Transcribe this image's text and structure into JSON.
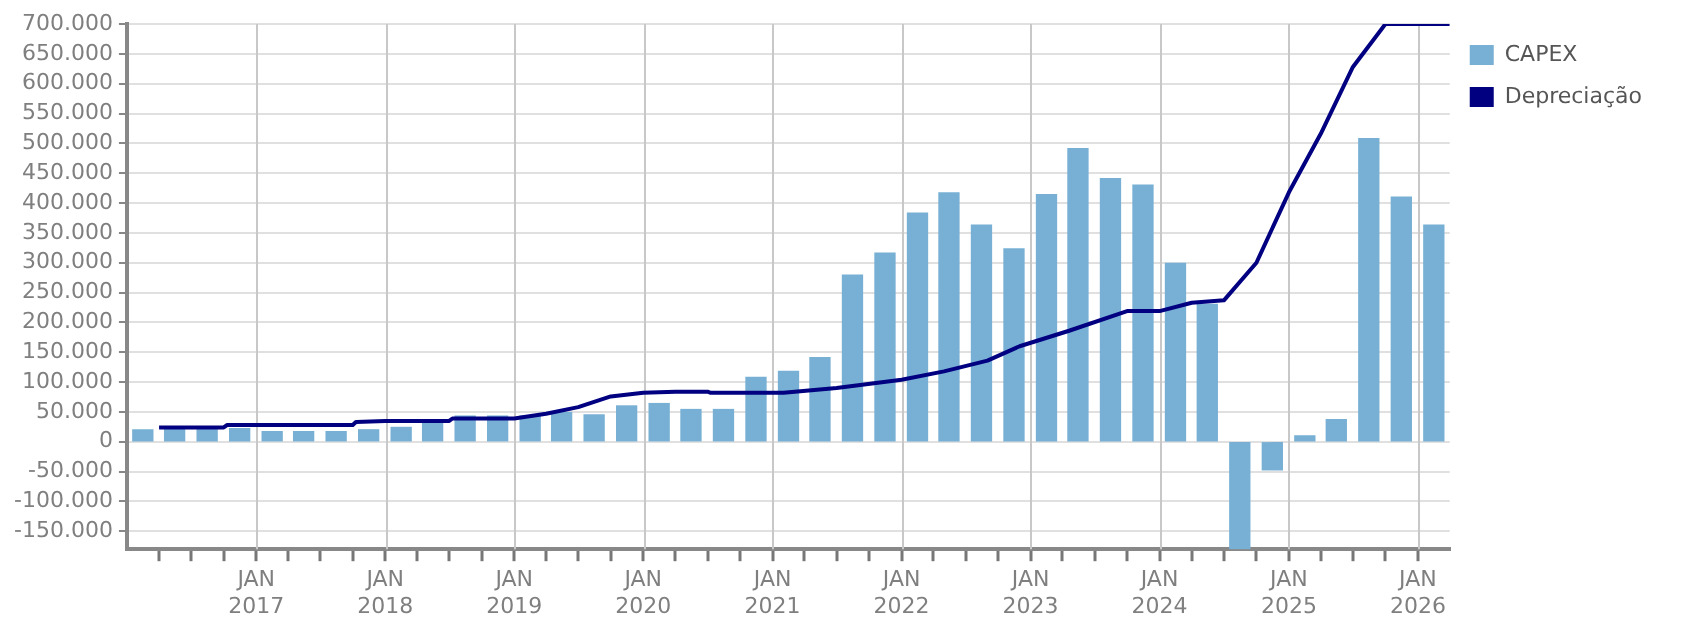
{
  "chart_data": {
    "type": "bar",
    "legend": "top right",
    "grid": true,
    "x": [
      "2016-02-15",
      "2016-05-15",
      "2016-08-15",
      "2016-11-15",
      "2017-02-15",
      "2017-05-15",
      "2017-08-15",
      "2017-11-15",
      "2018-02-15",
      "2018-05-15",
      "2018-08-15",
      "2018-11-15",
      "2019-02-15",
      "2019-05-15",
      "2019-08-15",
      "2019-11-15",
      "2020-02-15",
      "2020-05-15",
      "2020-08-15",
      "2020-11-15",
      "2021-02-15",
      "2021-05-15",
      "2021-08-15",
      "2021-11-15",
      "2022-02-15",
      "2022-05-15",
      "2022-08-15",
      "2022-11-15",
      "2023-02-15",
      "2023-05-15",
      "2023-08-15",
      "2023-11-15",
      "2024-02-15",
      "2024-05-15",
      "2024-08-15",
      "2024-11-15",
      "2025-02-15",
      "2025-05-15",
      "2025-08-15",
      "2025-11-15",
      "2026-02-15"
    ],
    "xlim": [
      "2016-01",
      "2026-04"
    ],
    "xticks": [
      {
        "value": "2016-04",
        "label": null
      },
      {
        "value": "2016-07",
        "label": null
      },
      {
        "value": "2016-10",
        "label": null
      },
      {
        "value": "2017-01",
        "label": "JAN\n2017"
      },
      {
        "value": "2017-04",
        "label": null
      },
      {
        "value": "2017-07",
        "label": null
      },
      {
        "value": "2017-10",
        "label": null
      },
      {
        "value": "2018-01",
        "label": "JAN\n2018"
      },
      {
        "value": "2018-04",
        "label": null
      },
      {
        "value": "2018-07",
        "label": null
      },
      {
        "value": "2018-10",
        "label": null
      },
      {
        "value": "2019-01",
        "label": "JAN\n2019"
      },
      {
        "value": "2019-04",
        "label": null
      },
      {
        "value": "2019-07",
        "label": null
      },
      {
        "value": "2019-10",
        "label": null
      },
      {
        "value": "2020-01",
        "label": "JAN\n2020"
      },
      {
        "value": "2020-04",
        "label": null
      },
      {
        "value": "2020-07",
        "label": null
      },
      {
        "value": "2020-10",
        "label": null
      },
      {
        "value": "2021-01",
        "label": "JAN\n2021"
      },
      {
        "value": "2021-04",
        "label": null
      },
      {
        "value": "2021-07",
        "label": null
      },
      {
        "value": "2021-10",
        "label": null
      },
      {
        "value": "2022-01",
        "label": "JAN\n2022"
      },
      {
        "value": "2022-04",
        "label": null
      },
      {
        "value": "2022-07",
        "label": null
      },
      {
        "value": "2022-10",
        "label": null
      },
      {
        "value": "2023-01",
        "label": "JAN\n2023"
      },
      {
        "value": "2023-04",
        "label": null
      },
      {
        "value": "2023-07",
        "label": null
      },
      {
        "value": "2023-10",
        "label": null
      },
      {
        "value": "2024-01",
        "label": "JAN\n2024"
      },
      {
        "value": "2024-04",
        "label": null
      },
      {
        "value": "2024-07",
        "label": null
      },
      {
        "value": "2024-10",
        "label": null
      },
      {
        "value": "2025-01",
        "label": "JAN\n2025"
      },
      {
        "value": "2025-04",
        "label": null
      },
      {
        "value": "2025-07",
        "label": null
      },
      {
        "value": "2025-10",
        "label": null
      },
      {
        "value": "2026-01",
        "label": "JAN\n2026"
      }
    ],
    "ylim": [
      -180000,
      700000
    ],
    "yticks": [
      {
        "value": -150000,
        "label": "-150.000"
      },
      {
        "value": -100000,
        "label": "-100.000"
      },
      {
        "value": -50000,
        "label": "-50.000"
      },
      {
        "value": 0,
        "label": "0"
      },
      {
        "value": 50000,
        "label": "50.000"
      },
      {
        "value": 100000,
        "label": "100.000"
      },
      {
        "value": 150000,
        "label": "150.000"
      },
      {
        "value": 200000,
        "label": "200.000"
      },
      {
        "value": 250000,
        "label": "250.000"
      },
      {
        "value": 300000,
        "label": "300.000"
      },
      {
        "value": 350000,
        "label": "350.000"
      },
      {
        "value": 400000,
        "label": "400.000"
      },
      {
        "value": 450000,
        "label": "450.000"
      },
      {
        "value": 500000,
        "label": "500.000"
      },
      {
        "value": 550000,
        "label": "550.000"
      },
      {
        "value": 600000,
        "label": "600.000"
      },
      {
        "value": 650000,
        "label": "650.000"
      },
      {
        "value": 700000,
        "label": "700.000"
      }
    ],
    "series": [
      {
        "name": "CAPEX",
        "color": "#77b0d4",
        "values": [
          20000,
          25000,
          25000,
          22000,
          17000,
          17000,
          17000,
          20000,
          24000,
          32000,
          43000,
          43000,
          43000,
          49000,
          45000,
          60000,
          64000,
          54000,
          54000,
          108000,
          118000,
          141000,
          279000,
          316000,
          383000,
          417000,
          363000,
          323000,
          414000,
          491000,
          441000,
          430000,
          299000,
          230000,
          -180000,
          -47000,
          10000,
          37000,
          508000,
          410000,
          363000
        ]
      },
      {
        "name": "Depreciação",
        "type": "line",
        "color": "#000080",
        "marker": "none",
        "x": [
          "2016-04",
          "2016-10",
          "2016-10-10",
          "2017-10",
          "2017-10-10",
          "2018-01",
          "2018-07",
          "2018-07-10",
          "2019-01",
          "2019-04",
          "2019-07",
          "2019-10",
          "2020-01",
          "2020-04",
          "2020-07",
          "2020-07-10",
          "2021-02",
          "2021-07",
          "2022-01",
          "2022-05",
          "2022-09",
          "2022-12",
          "2023-04-20",
          "2023-10",
          "2024-01",
          "2024-04",
          "2024-07",
          "2024-10",
          "2025-01",
          "2025-04",
          "2025-07",
          "2025-10",
          "2026-04"
        ],
        "values": [
          24000,
          24000,
          28000,
          28000,
          33000,
          35000,
          35000,
          39000,
          39000,
          47000,
          58000,
          76000,
          82000,
          84000,
          84000,
          82000,
          82000,
          90000,
          104000,
          118000,
          136000,
          160000,
          186000,
          219000,
          219000,
          233000,
          237000,
          300000,
          418000,
          516000,
          628000,
          700000,
          700000
        ]
      }
    ]
  }
}
